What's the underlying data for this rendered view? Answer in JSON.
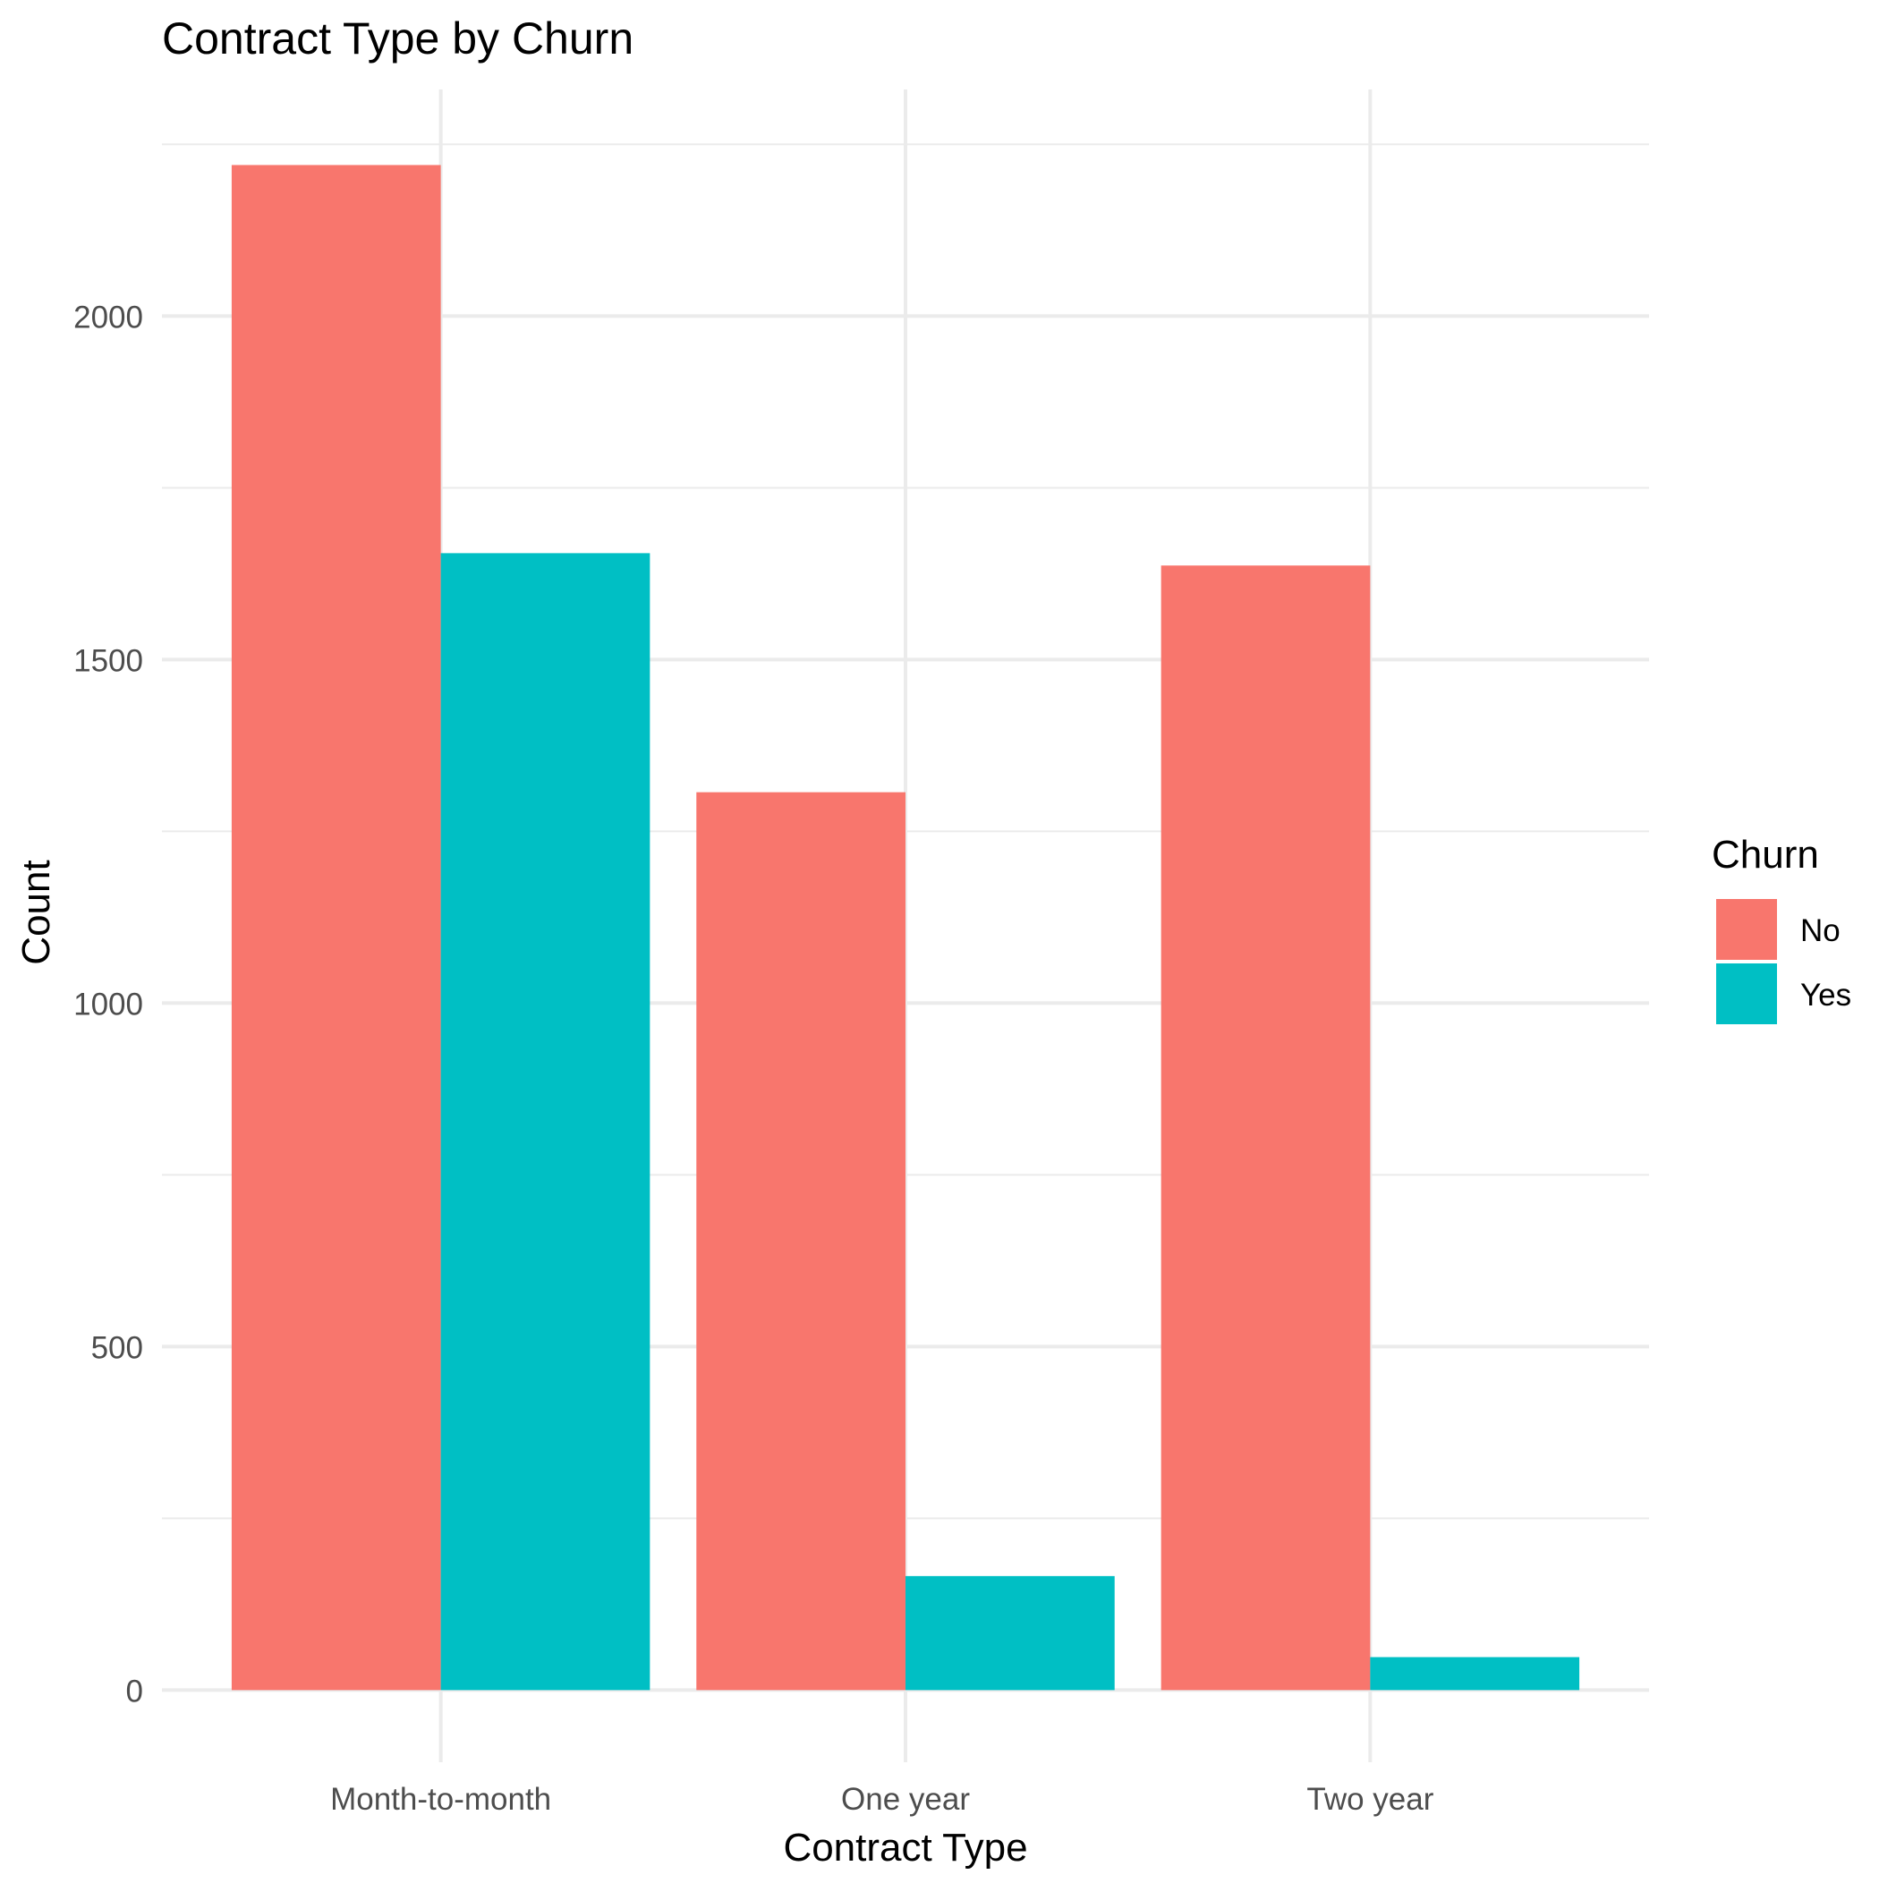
{
  "chart_data": {
    "type": "bar",
    "title": "Contract Type by Churn",
    "xlabel": "Contract Type",
    "ylabel": "Count",
    "categories": [
      "Month-to-month",
      "One year",
      "Two year"
    ],
    "series": [
      {
        "name": "No",
        "values": [
          2220,
          1307,
          1637
        ],
        "color": "#F8766D"
      },
      {
        "name": "Yes",
        "values": [
          1655,
          166,
          48
        ],
        "color": "#00BFC4"
      }
    ],
    "yticks": [
      0,
      500,
      1000,
      1500,
      2000
    ],
    "ylim": [
      -105,
      2330
    ],
    "grid": true,
    "legend": {
      "title": "Churn",
      "position": "right"
    }
  }
}
